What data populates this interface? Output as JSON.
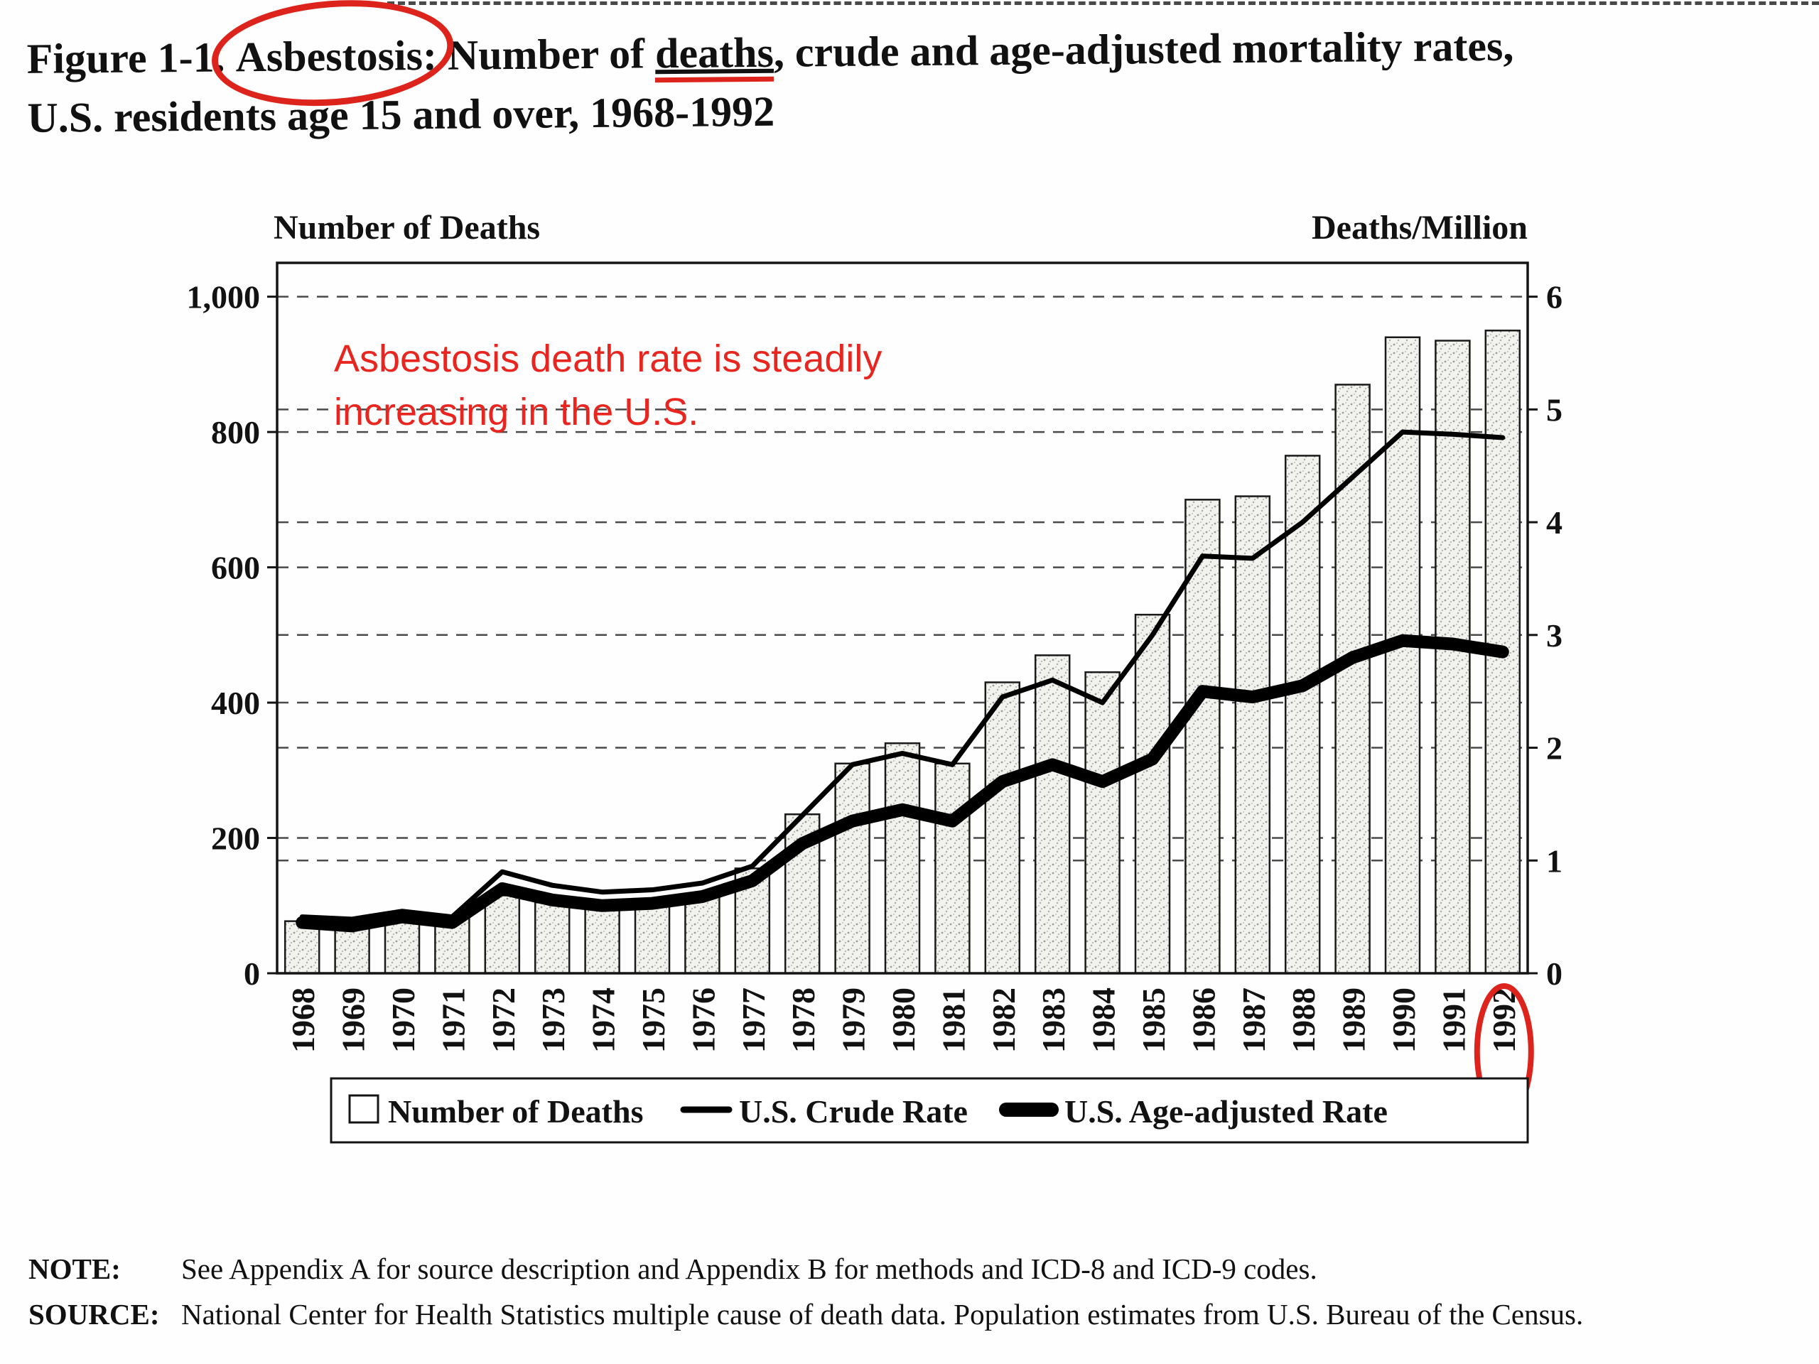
{
  "title": {
    "prefix": "Figure 1-1. ",
    "circled": "Asbestosis:",
    "after_circled": " Number of ",
    "underlined": "deaths",
    "rest": ", crude and age-adjusted mortality rates,",
    "line2": "U.S. residents age 15 and over, 1968-1992"
  },
  "annotation": {
    "line1": "Asbestosis death rate is steadily",
    "line2": "increasing in the U.S.",
    "color": "#e8251e"
  },
  "footer": {
    "note_label": "NOTE:",
    "note_text": "See Appendix A for source description and Appendix B for methods and ICD-8 and ICD-9 codes.",
    "source_label": "SOURCE:",
    "source_text": "National Center for Health Statistics multiple cause of death data.  Population estimates from U.S. Bureau of the Census."
  },
  "chart_data": {
    "type": "bar",
    "combo": "bars with two overlaid lines",
    "categories": [
      "1968",
      "1969",
      "1970",
      "1971",
      "1972",
      "1973",
      "1974",
      "1975",
      "1976",
      "1977",
      "1978",
      "1979",
      "1980",
      "1981",
      "1982",
      "1983",
      "1984",
      "1985",
      "1986",
      "1987",
      "1988",
      "1989",
      "1990",
      "1991",
      "1992"
    ],
    "left_axis": {
      "title": "Number of Deaths",
      "ticks": [
        0,
        200,
        400,
        600,
        800,
        1000
      ],
      "tick_labels": [
        "0",
        "200",
        "400",
        "600",
        "800",
        "1,000"
      ],
      "range": [
        0,
        1000
      ]
    },
    "right_axis": {
      "title": "Deaths/Million",
      "ticks": [
        0,
        1,
        2,
        3,
        4,
        5,
        6
      ],
      "tick_labels": [
        "0",
        "1",
        "2",
        "3",
        "4",
        "5",
        "6"
      ],
      "range": [
        0,
        6
      ]
    },
    "series": [
      {
        "name": "Number of Deaths",
        "type": "bar",
        "axis": "left",
        "values": [
          77,
          82,
          88,
          85,
          115,
          105,
          100,
          105,
          115,
          155,
          235,
          310,
          340,
          310,
          430,
          470,
          445,
          530,
          700,
          705,
          765,
          870,
          940,
          935,
          950
        ]
      },
      {
        "name": "U.S. Crude Rate",
        "type": "line",
        "axis": "right",
        "stroke_width": 7,
        "values": [
          0.5,
          0.48,
          0.55,
          0.5,
          0.9,
          0.78,
          0.72,
          0.74,
          0.8,
          0.95,
          1.4,
          1.85,
          1.95,
          1.85,
          2.45,
          2.6,
          2.4,
          3.0,
          3.7,
          3.68,
          4.0,
          4.4,
          4.8,
          4.78,
          4.75
        ]
      },
      {
        "name": "U.S. Age-adjusted Rate",
        "type": "line",
        "axis": "right",
        "stroke_width": 18,
        "values": [
          0.45,
          0.42,
          0.5,
          0.45,
          0.75,
          0.65,
          0.6,
          0.62,
          0.68,
          0.82,
          1.15,
          1.35,
          1.45,
          1.35,
          1.7,
          1.85,
          1.7,
          1.9,
          2.5,
          2.45,
          2.55,
          2.8,
          2.95,
          2.92,
          2.85
        ]
      }
    ],
    "legend": [
      {
        "label": "Number of Deaths",
        "marker": "bar-outline"
      },
      {
        "label": "U.S. Crude Rate",
        "marker": "thin-line"
      },
      {
        "label": "U.S. Age-adjusted Rate",
        "marker": "thick-line"
      }
    ],
    "gridlines": "dashed",
    "legend_position": "bottom-box",
    "annotations": {
      "circled_year": "1992"
    },
    "colors": {
      "bar_fill": "#f2f2ef",
      "bar_stroke": "#1a1a1a",
      "line": "#000000",
      "red_annotation": "#dd241c"
    }
  }
}
